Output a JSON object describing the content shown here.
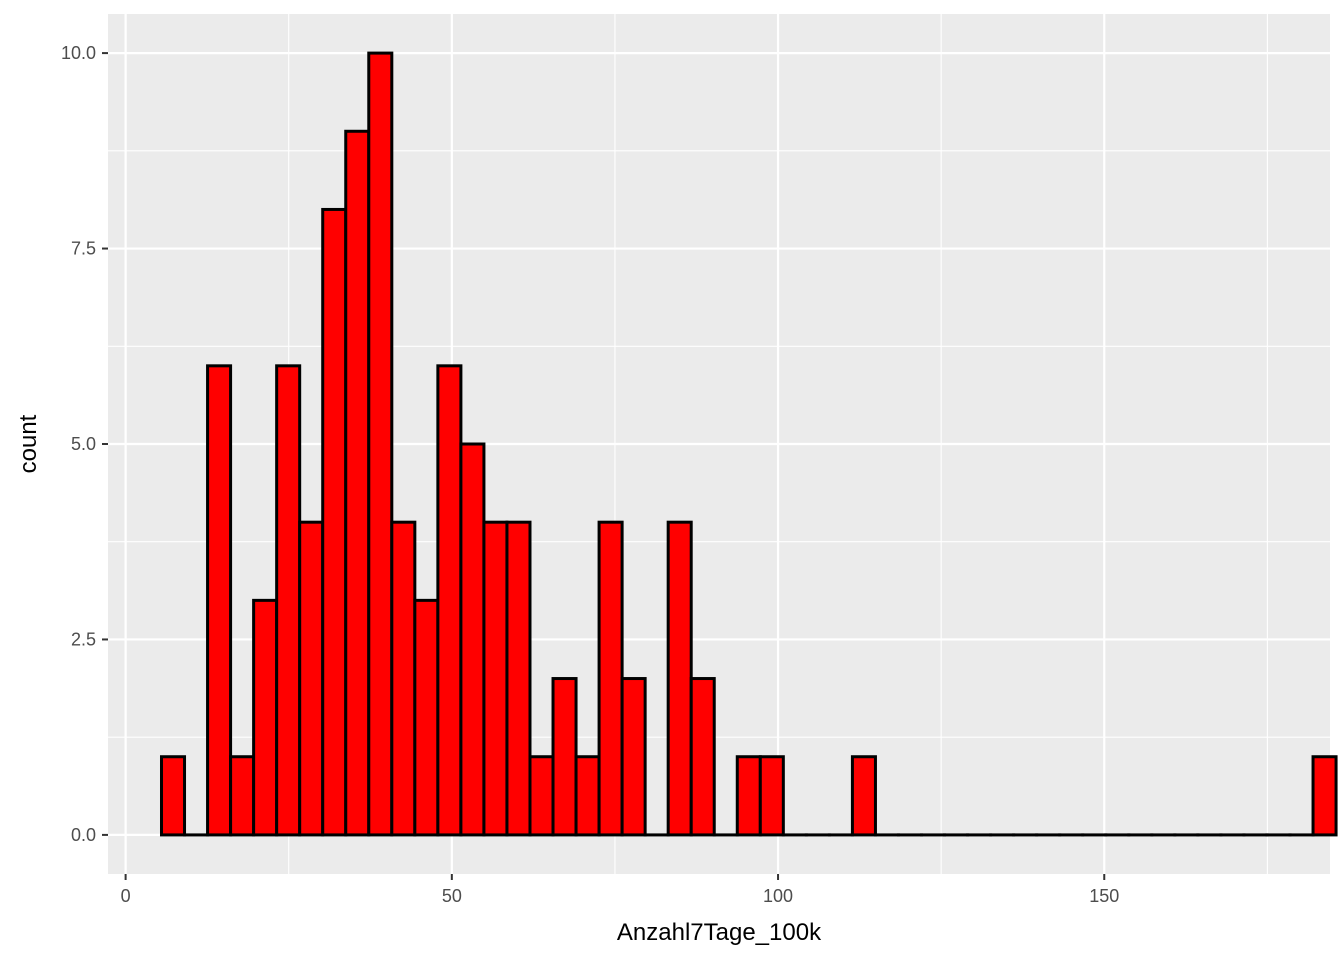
{
  "chart_data": {
    "type": "bar",
    "style": "histogram",
    "title": "",
    "xlabel": "Anzahl7Tage_100k",
    "ylabel": "count",
    "xlim": [
      -2.7,
      184.6
    ],
    "ylim": [
      -0.5,
      10.5
    ],
    "x_ticks": [
      0,
      50,
      100,
      150
    ],
    "x_tick_labels": [
      "0",
      "50",
      "100",
      "150"
    ],
    "y_ticks": [
      0,
      2.5,
      5,
      7.5,
      10
    ],
    "y_tick_labels": [
      "0.0",
      "2.5",
      "5.0",
      "7.5",
      "10.0"
    ],
    "bin_start": 5.5,
    "bin_width": 3.53,
    "values": [
      1,
      0,
      6,
      1,
      3,
      6,
      4,
      8,
      9,
      10,
      4,
      3,
      6,
      5,
      4,
      4,
      1,
      2,
      1,
      4,
      2,
      0,
      4,
      2,
      0,
      1,
      1,
      0,
      0,
      0,
      1,
      0,
      0,
      0,
      0,
      0,
      0,
      0,
      0,
      0,
      0,
      0,
      0,
      0,
      0,
      0,
      0,
      0,
      0,
      0,
      1
    ],
    "grid": true,
    "colors": {
      "bar_fill": "#ff0000",
      "bar_outline": "#000000",
      "panel_background": "#ebebeb",
      "grid": "#ffffff",
      "tick_text": "#4d4d4d"
    }
  }
}
